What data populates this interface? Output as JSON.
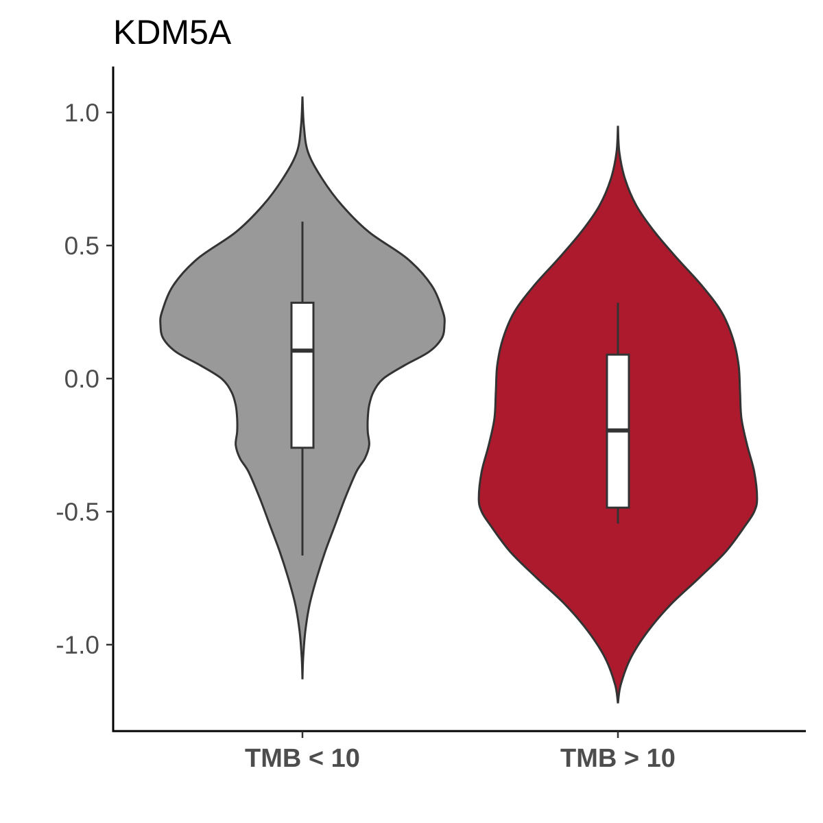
{
  "chart_data": {
    "type": "violin",
    "title": "KDM5A",
    "xlabel": "",
    "ylabel": "",
    "ylim": [
      -1.3,
      1.18
    ],
    "y_ticks": [
      1.0,
      0.5,
      0.0,
      -0.5,
      -1.0
    ],
    "y_tick_labels": [
      "1.0",
      "0.5",
      "0.0",
      "-0.5",
      "-1.0"
    ],
    "grid": false,
    "legend": "none",
    "categories": [
      "TMB < 10",
      "TMB > 10"
    ],
    "series": [
      {
        "category": "TMB < 10",
        "color": "#999999",
        "violin_range": [
          -1.13,
          1.06
        ],
        "box": {
          "q1": -0.26,
          "median": 0.105,
          "q3": 0.285,
          "whisker_low": -0.665,
          "whisker_high": 0.59
        },
        "density": [
          [
            1.06,
            0.0
          ],
          [
            0.95,
            0.01
          ],
          [
            0.85,
            0.04
          ],
          [
            0.75,
            0.14
          ],
          [
            0.65,
            0.28
          ],
          [
            0.55,
            0.47
          ],
          [
            0.45,
            0.74
          ],
          [
            0.35,
            0.91
          ],
          [
            0.25,
            0.99
          ],
          [
            0.2,
            1.0
          ],
          [
            0.15,
            0.98
          ],
          [
            0.1,
            0.89
          ],
          [
            0.05,
            0.72
          ],
          [
            0.0,
            0.57
          ],
          [
            -0.05,
            0.5
          ],
          [
            -0.1,
            0.47
          ],
          [
            -0.15,
            0.46
          ],
          [
            -0.2,
            0.46
          ],
          [
            -0.25,
            0.47
          ],
          [
            -0.3,
            0.44
          ],
          [
            -0.35,
            0.38
          ],
          [
            -0.45,
            0.3
          ],
          [
            -0.55,
            0.23
          ],
          [
            -0.65,
            0.16
          ],
          [
            -0.75,
            0.1
          ],
          [
            -0.85,
            0.05
          ],
          [
            -0.95,
            0.02
          ],
          [
            -1.05,
            0.005
          ],
          [
            -1.13,
            0.0
          ]
        ]
      },
      {
        "category": "TMB > 10",
        "color": "#ae1a2d",
        "violin_range": [
          -1.22,
          0.95
        ],
        "box": {
          "q1": -0.485,
          "median": -0.195,
          "q3": 0.09,
          "whisker_low": -0.545,
          "whisker_high": 0.285
        },
        "density": [
          [
            0.95,
            0.0
          ],
          [
            0.85,
            0.01
          ],
          [
            0.75,
            0.05
          ],
          [
            0.65,
            0.13
          ],
          [
            0.55,
            0.26
          ],
          [
            0.45,
            0.42
          ],
          [
            0.35,
            0.59
          ],
          [
            0.25,
            0.73
          ],
          [
            0.15,
            0.81
          ],
          [
            0.05,
            0.85
          ],
          [
            -0.05,
            0.86
          ],
          [
            -0.15,
            0.87
          ],
          [
            -0.25,
            0.91
          ],
          [
            -0.35,
            0.96
          ],
          [
            -0.45,
            0.98
          ],
          [
            -0.5,
            0.96
          ],
          [
            -0.55,
            0.9
          ],
          [
            -0.65,
            0.76
          ],
          [
            -0.75,
            0.57
          ],
          [
            -0.85,
            0.37
          ],
          [
            -0.95,
            0.21
          ],
          [
            -1.05,
            0.09
          ],
          [
            -1.15,
            0.02
          ],
          [
            -1.22,
            0.0
          ]
        ]
      }
    ]
  }
}
